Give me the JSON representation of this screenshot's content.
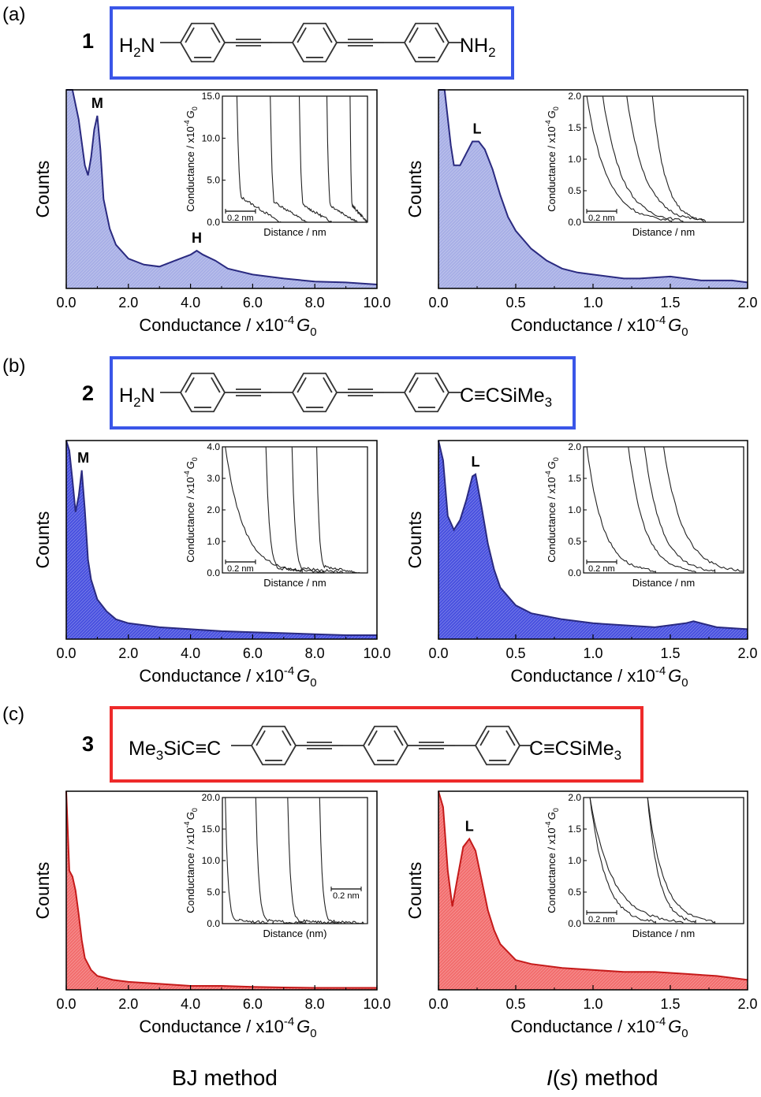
{
  "colors": {
    "blue": "#3a56e8",
    "red": "#ee2a2a",
    "line": "#2a2a80",
    "blueFill": "#a9b0e6",
    "blueSolid": "#4c54e0",
    "redFill": "#f27070"
  },
  "panels": [
    {
      "label": "(a)",
      "number": "1",
      "left_group": "H2N",
      "right_group": "NH2",
      "box_color": "blue"
    },
    {
      "label": "(b)",
      "number": "2",
      "left_group": "H2N",
      "right_group": "C≡CSiMe3",
      "box_color": "blue"
    },
    {
      "label": "(c)",
      "number": "3",
      "left_group": "Me3SiC≡C",
      "right_group": "C≡CSiMe3",
      "box_color": "red"
    }
  ],
  "methods": {
    "left": "BJ method",
    "right_prefix": "I",
    "right_paren_open": "(",
    "right_var": "s",
    "right_paren_close": ")",
    "right_suffix": " method"
  },
  "chart_data": [
    {
      "id": "a-left",
      "type": "area",
      "fill": "blueFill",
      "ylabel": "Counts",
      "xlabel": "Conductance / x10",
      "xlabel_exp": "-4",
      "xlabel_unit": "G",
      "xlabel_sub": "0",
      "xlim": [
        0,
        10
      ],
      "xticks": [
        "0.0",
        "2.0",
        "4.0",
        "6.0",
        "8.0",
        "10.0"
      ],
      "ylim": [
        0,
        1
      ],
      "x": [
        0,
        0.2,
        0.4,
        0.6,
        0.7,
        0.8,
        0.9,
        1.0,
        1.1,
        1.2,
        1.4,
        1.6,
        2.0,
        2.5,
        3.0,
        3.5,
        4.0,
        4.2,
        4.4,
        4.8,
        5.2,
        6.0,
        7.0,
        8.0,
        9.0,
        10.0
      ],
      "y": [
        1.05,
        1.02,
        0.85,
        0.62,
        0.57,
        0.66,
        0.8,
        0.87,
        0.7,
        0.45,
        0.3,
        0.22,
        0.15,
        0.12,
        0.11,
        0.14,
        0.17,
        0.19,
        0.17,
        0.14,
        0.1,
        0.07,
        0.05,
        0.035,
        0.03,
        0.02
      ],
      "annotations": [
        {
          "text": "M",
          "x": 1.0,
          "y": 0.87
        },
        {
          "text": "H",
          "x": 4.2,
          "y": 0.19
        }
      ],
      "inset": {
        "ylabel": "Conductance / x10",
        "ylabel_exp": "-4",
        "ylabel_unit": "G",
        "ylabel_sub": "0",
        "xlabel": "Distance / nm",
        "yticks": [
          "0.0",
          "5.0",
          "10.0",
          "15.0"
        ],
        "ymax": 15,
        "scalebar": "0.2 nm",
        "scalebar_pos": "bottom-left",
        "traces": [
          {
            "drop": 0.1,
            "tail": 2.2,
            "end": 0.4
          },
          {
            "drop": 0.33,
            "tail": 1.8,
            "end": 0.58
          },
          {
            "drop": 0.53,
            "tail": 1.5,
            "end": 0.76
          },
          {
            "drop": 0.72,
            "tail": 1.5,
            "end": 0.93
          },
          {
            "drop": 0.88,
            "tail": 1.5,
            "end": 1.0
          }
        ]
      }
    },
    {
      "id": "a-right",
      "type": "area",
      "fill": "blueFill",
      "ylabel": "Counts",
      "xlabel": "Conductance / x10",
      "xlabel_exp": "-4",
      "xlabel_unit": "G",
      "xlabel_sub": "0",
      "xlim": [
        0,
        2
      ],
      "xticks": [
        "0.0",
        "0.5",
        "1.0",
        "1.5",
        "2.0"
      ],
      "ylim": [
        0,
        1
      ],
      "x": [
        0,
        0.04,
        0.08,
        0.1,
        0.14,
        0.18,
        0.22,
        0.26,
        0.3,
        0.35,
        0.4,
        0.45,
        0.5,
        0.6,
        0.7,
        0.8,
        0.9,
        1.0,
        1.1,
        1.2,
        1.3,
        1.5,
        1.7,
        1.9,
        2.0
      ],
      "y": [
        1.05,
        1.0,
        0.72,
        0.62,
        0.62,
        0.68,
        0.74,
        0.74,
        0.7,
        0.6,
        0.47,
        0.36,
        0.29,
        0.2,
        0.14,
        0.1,
        0.08,
        0.07,
        0.06,
        0.05,
        0.05,
        0.06,
        0.04,
        0.04,
        0.03
      ],
      "annotations": [
        {
          "text": "L",
          "x": 0.25,
          "y": 0.74
        }
      ],
      "inset": {
        "ylabel": "Conductance / x10",
        "ylabel_exp": "-4",
        "ylabel_unit": "G",
        "ylabel_sub": "0",
        "xlabel": "Distance / nm",
        "yticks": [
          "0.0",
          "0.5",
          "1.0",
          "1.5",
          "2.0"
        ],
        "ymax": 2,
        "scalebar": "0.2 nm",
        "scalebar_pos": "bottom-left",
        "traces": [
          {
            "drop": 0.02,
            "tail": 0.35,
            "end": 0.55,
            "slow": true
          },
          {
            "drop": 0.12,
            "tail": 0.35,
            "end": 0.62,
            "slow": true
          },
          {
            "drop": 0.27,
            "tail": 0.35,
            "end": 0.75,
            "slow": true
          },
          {
            "drop": 0.43,
            "tail": 0.5,
            "end": 0.76,
            "slow": true
          }
        ]
      }
    },
    {
      "id": "b-left",
      "type": "area",
      "fill": "blueSolid",
      "ylabel": "Counts",
      "xlabel": "Conductance / x10",
      "xlabel_exp": "-4",
      "xlabel_unit": "G",
      "xlabel_sub": "0",
      "xlim": [
        0,
        10
      ],
      "xticks": [
        "0.0",
        "2.0",
        "4.0",
        "6.0",
        "8.0",
        "10.0"
      ],
      "ylim": [
        0,
        1
      ],
      "x": [
        0,
        0.1,
        0.2,
        0.3,
        0.4,
        0.5,
        0.6,
        0.7,
        0.8,
        1.0,
        1.3,
        1.6,
        2.0,
        3.0,
        4.0,
        5.0,
        6.0,
        7.0,
        8.0,
        9.0,
        10.0
      ],
      "y": [
        1.05,
        0.95,
        0.8,
        0.64,
        0.72,
        0.85,
        0.65,
        0.4,
        0.3,
        0.2,
        0.14,
        0.1,
        0.08,
        0.06,
        0.05,
        0.04,
        0.035,
        0.03,
        0.025,
        0.02,
        0.02
      ],
      "annotations": [
        {
          "text": "M",
          "x": 0.55,
          "y": 0.85
        }
      ],
      "inset": {
        "ylabel": "Conductance / x10",
        "ylabel_exp": "-4",
        "ylabel_unit": "G",
        "ylabel_sub": "0",
        "xlabel": "Distance / nm",
        "yticks": [
          "0.0",
          "1.0",
          "2.0",
          "3.0",
          "4.0"
        ],
        "ymax": 4,
        "scalebar": "0.2 nm",
        "scalebar_pos": "bottom-left",
        "traces": [
          {
            "drop": 0.02,
            "tail": 0.4,
            "end": 0.55,
            "slow": true
          },
          {
            "drop": 0.3,
            "tail": 0.45,
            "end": 0.75
          },
          {
            "drop": 0.48,
            "tail": 0.5,
            "end": 0.85
          },
          {
            "drop": 0.65,
            "tail": 0.6,
            "end": 0.95
          }
        ]
      }
    },
    {
      "id": "b-right",
      "type": "area",
      "fill": "blueSolid",
      "ylabel": "Counts",
      "xlabel": "Conductance / x10",
      "xlabel_exp": "-4",
      "xlabel_unit": "G",
      "xlabel_sub": "0",
      "xlim": [
        0,
        2
      ],
      "xticks": [
        "0.0",
        "0.5",
        "1.0",
        "1.5",
        "2.0"
      ],
      "ylim": [
        0,
        1
      ],
      "x": [
        0,
        0.03,
        0.06,
        0.1,
        0.14,
        0.18,
        0.22,
        0.24,
        0.28,
        0.32,
        0.36,
        0.4,
        0.5,
        0.6,
        0.8,
        1.0,
        1.2,
        1.4,
        1.6,
        1.65,
        1.8,
        2.0
      ],
      "y": [
        1.05,
        0.9,
        0.62,
        0.55,
        0.6,
        0.7,
        0.82,
        0.83,
        0.66,
        0.48,
        0.35,
        0.26,
        0.17,
        0.13,
        0.1,
        0.08,
        0.07,
        0.06,
        0.08,
        0.09,
        0.06,
        0.05
      ],
      "annotations": [
        {
          "text": "L",
          "x": 0.24,
          "y": 0.83
        }
      ],
      "inset": {
        "ylabel": "Conductance / x10",
        "ylabel_exp": "-4",
        "ylabel_unit": "G",
        "ylabel_sub": "0",
        "xlabel": "Distance / nm",
        "yticks": [
          "0.0",
          "0.5",
          "1.0",
          "1.5",
          "2.0"
        ],
        "ymax": 2,
        "scalebar": "0.2 nm",
        "scalebar_pos": "bottom-left",
        "traces": [
          {
            "drop": 0.02,
            "tail": 0.3,
            "end": 0.45,
            "slow": true
          },
          {
            "drop": 0.28,
            "tail": 0.45,
            "end": 0.7,
            "slow": true
          },
          {
            "drop": 0.38,
            "tail": 0.4,
            "end": 0.82,
            "slow": true
          },
          {
            "drop": 0.5,
            "tail": 0.5,
            "end": 1.0,
            "slow": true
          }
        ]
      }
    },
    {
      "id": "c-left",
      "type": "area",
      "fill": "redFill",
      "ylabel": "Counts",
      "xlabel": "Conductance / x10",
      "xlabel_exp": "-4",
      "xlabel_unit": "G",
      "xlabel_sub": "0",
      "xlim": [
        0,
        10
      ],
      "xticks": [
        "0.0",
        "2.0",
        "4.0",
        "6.0",
        "8.0",
        "10.0"
      ],
      "ylim": [
        0,
        1
      ],
      "x": [
        0,
        0.1,
        0.2,
        0.3,
        0.4,
        0.5,
        0.6,
        0.8,
        1.0,
        1.5,
        2.0,
        3.0,
        4.0,
        5.0,
        6.0,
        7.0,
        8.0,
        9.0,
        10.0
      ],
      "y": [
        1.05,
        0.6,
        0.57,
        0.5,
        0.38,
        0.25,
        0.16,
        0.1,
        0.07,
        0.05,
        0.04,
        0.03,
        0.02,
        0.02,
        0.015,
        0.012,
        0.01,
        0.01,
        0.01
      ],
      "annotations": [],
      "inset": {
        "ylabel": "Conductance / x10",
        "ylabel_exp": "-4",
        "ylabel_unit": "G",
        "ylabel_sub": "0",
        "xlabel": "Distance (nm)",
        "yticks": [
          "0.0",
          "5.0",
          "10.0",
          "15.0",
          "20.0"
        ],
        "ymax": 20,
        "scalebar": "0.2 nm",
        "scalebar_pos": "right",
        "traces": [
          {
            "drop": 0.02,
            "tail": 0.4,
            "end": 0.35
          },
          {
            "drop": 0.23,
            "tail": 0.3,
            "end": 0.6
          },
          {
            "drop": 0.45,
            "tail": 0.3,
            "end": 0.8
          },
          {
            "drop": 0.67,
            "tail": 0.3,
            "end": 1.0
          }
        ]
      }
    },
    {
      "id": "c-right",
      "type": "area",
      "fill": "redFill",
      "ylabel": "Counts",
      "xlabel": "Conductance / x10",
      "xlabel_exp": "-4",
      "xlabel_unit": "G",
      "xlabel_sub": "0",
      "xlim": [
        0,
        2
      ],
      "xticks": [
        "0.0",
        "0.5",
        "1.0",
        "1.5",
        "2.0"
      ],
      "ylim": [
        0,
        1
      ],
      "x": [
        0,
        0.03,
        0.06,
        0.09,
        0.12,
        0.16,
        0.2,
        0.24,
        0.28,
        0.32,
        0.36,
        0.4,
        0.5,
        0.6,
        0.8,
        1.0,
        1.2,
        1.4,
        1.6,
        1.8,
        2.0
      ],
      "y": [
        1.05,
        0.92,
        0.6,
        0.42,
        0.55,
        0.72,
        0.76,
        0.7,
        0.55,
        0.4,
        0.3,
        0.23,
        0.15,
        0.13,
        0.11,
        0.1,
        0.09,
        0.09,
        0.08,
        0.07,
        0.05
      ],
      "annotations": [
        {
          "text": "L",
          "x": 0.2,
          "y": 0.76
        }
      ],
      "inset": {
        "ylabel": "Conductance / x10",
        "ylabel_exp": "-4",
        "ylabel_unit": "G",
        "ylabel_sub": "0",
        "xlabel": "Distance / nm",
        "yticks": [
          "0.0",
          "0.5",
          "1.0",
          "1.5",
          "2.0"
        ],
        "ymax": 2,
        "scalebar": "0.2 nm",
        "scalebar_pos": "bottom-left",
        "traces": [
          {
            "drop": 0.04,
            "tail": 0.2,
            "end": 0.45,
            "slow": true
          },
          {
            "drop": 0.04,
            "tail": 0.15,
            "end": 0.62,
            "slow": true
          },
          {
            "drop": 0.4,
            "tail": 0.2,
            "end": 0.7,
            "slow": true
          },
          {
            "drop": 0.4,
            "tail": 0.25,
            "end": 0.82,
            "slow": true
          }
        ]
      }
    }
  ]
}
